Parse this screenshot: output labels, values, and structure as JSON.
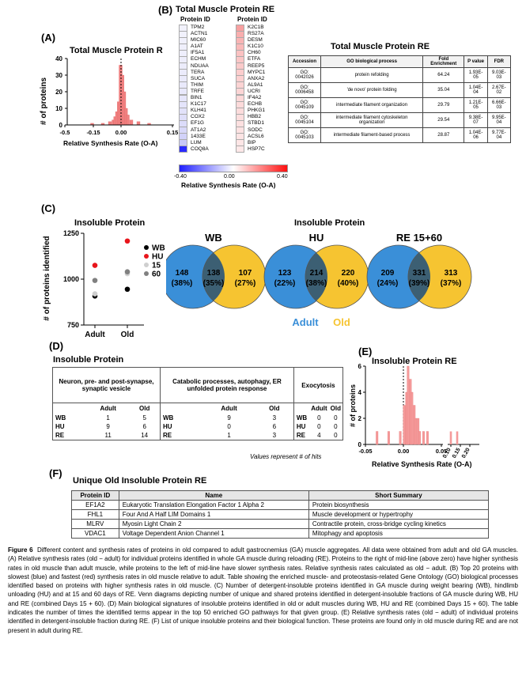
{
  "panel_a": {
    "label": "(A)",
    "title": "Total Muscle Protein R",
    "ylabel": "# of proteins",
    "xlabel": "Relative Synthesis Rate (O-A)",
    "yticks": [
      "40",
      "30",
      "20",
      "10",
      "0"
    ],
    "xticks": [
      "-0.5",
      "-0.15",
      "0.00",
      "0.15"
    ]
  },
  "panel_b": {
    "label": "(B)",
    "title": "Total Muscle Protein RE",
    "col1_header": "Protein ID",
    "col2_header": "Protein ID",
    "slow": [
      {
        "id": "TPM2",
        "color": "#f2f2fc"
      },
      {
        "id": "ACTN1",
        "color": "#f1f1fc"
      },
      {
        "id": "MIC60",
        "color": "#f0f0fc"
      },
      {
        "id": "A1AT",
        "color": "#efeffc"
      },
      {
        "id": "IF5A1",
        "color": "#eeeefc"
      },
      {
        "id": "ECHM",
        "color": "#ededfb"
      },
      {
        "id": "NDUAA",
        "color": "#ececfb"
      },
      {
        "id": "TERA",
        "color": "#ebebfb"
      },
      {
        "id": "SUCA",
        "color": "#eaeafb"
      },
      {
        "id": "THIM",
        "color": "#e9e9fb"
      },
      {
        "id": "TRFE",
        "color": "#e8e8fb"
      },
      {
        "id": "BIN1",
        "color": "#e6e6fb"
      },
      {
        "id": "K1C17",
        "color": "#e4e4fb"
      },
      {
        "id": "KLH41",
        "color": "#e2e2fa"
      },
      {
        "id": "COX2",
        "color": "#dfdffa"
      },
      {
        "id": "EF1G",
        "color": "#dcdcfa"
      },
      {
        "id": "AT1A2",
        "color": "#d8d8f9"
      },
      {
        "id": "1433E",
        "color": "#d2d2f9"
      },
      {
        "id": "LUM",
        "color": "#c8c8f8"
      },
      {
        "id": "COQ8A",
        "color": "#2a2aff"
      }
    ],
    "fast": [
      {
        "id": "K2C1B",
        "color": "#f8a0a0"
      },
      {
        "id": "RS27A",
        "color": "#f9aeae"
      },
      {
        "id": "DESM",
        "color": "#f9b4b4"
      },
      {
        "id": "K1C10",
        "color": "#fab9b9"
      },
      {
        "id": "CH60",
        "color": "#fbc2c2"
      },
      {
        "id": "ETFA",
        "color": "#fbc6c6"
      },
      {
        "id": "REEP5",
        "color": "#fbcaca"
      },
      {
        "id": "MYPC1",
        "color": "#fccdcd"
      },
      {
        "id": "ANXA2",
        "color": "#fcd0d0"
      },
      {
        "id": "AL9A1",
        "color": "#fcd3d3"
      },
      {
        "id": "UCRI",
        "color": "#fcd5d5"
      },
      {
        "id": "IF4A2",
        "color": "#fdd8d8"
      },
      {
        "id": "ECHB",
        "color": "#fddada"
      },
      {
        "id": "PHKG1",
        "color": "#fddcdc"
      },
      {
        "id": "HBB2",
        "color": "#fddede"
      },
      {
        "id": "STBD1",
        "color": "#fde0e0"
      },
      {
        "id": "SODC",
        "color": "#fde2e2"
      },
      {
        "id": "ACSL6",
        "color": "#fde4e4"
      },
      {
        "id": "BIP",
        "color": "#fee6e6"
      },
      {
        "id": "HSP7C",
        "color": "#fee8e8"
      }
    ],
    "scale_ticks": [
      "-0.40",
      "0.00",
      "0.40"
    ],
    "scale_label": "Relative Synthesis Rate (O-A)",
    "go_title": "Total Muscle Protein RE",
    "go_headers": [
      "Accession",
      "GO biological process",
      "Fold Enrichment",
      "P value",
      "FDR"
    ],
    "go_rows": [
      [
        "GO: 0042026",
        "protein refolding",
        "64.24",
        "1.93E-05",
        "9.03E-03"
      ],
      [
        "GO: 0006458",
        "'de novo' protein folding",
        "35.04",
        "1.04E-04",
        "2.67E-02"
      ],
      [
        "GO: 0045109",
        "intermediate filament organization",
        "29.79",
        "1.21E-05",
        "6.66E-03"
      ],
      [
        "GO: 0045104",
        "intermediate filament cytoskeleton organization",
        "29.54",
        "9.38E-07",
        "9.95E-04"
      ],
      [
        "GO: 0045103",
        "intermediate filament-based process",
        "28.87",
        "1.04E-06",
        "9.77E-04"
      ]
    ]
  },
  "panel_c": {
    "label": "(C)",
    "scatter_title": "Insoluble Protein",
    "ylabel": "# of proteins identified",
    "yticks": [
      "1250",
      "1000",
      "750"
    ],
    "xticks": [
      "Adult",
      "Old"
    ],
    "legend": [
      {
        "label": "WB",
        "color": "#000000"
      },
      {
        "label": "HU",
        "color": "#e8151b"
      },
      {
        "label": "15",
        "color": "#cfcfcf"
      },
      {
        "label": "60",
        "color": "#808080"
      }
    ],
    "venn_title": "Insoluble Protein",
    "venns": [
      {
        "title": "WB",
        "left": "148",
        "left_pct": "(38%)",
        "mid": "138",
        "mid_pct": "(35%)",
        "right": "107",
        "right_pct": "(27%)"
      },
      {
        "title": "HU",
        "left": "123",
        "left_pct": "(22%)",
        "mid": "214",
        "mid_pct": "(38%)",
        "right": "220",
        "right_pct": "(40%)"
      },
      {
        "title": "RE 15+60",
        "left": "209",
        "left_pct": "(24%)",
        "mid": "331",
        "mid_pct": "(39%)",
        "right": "313",
        "right_pct": "(37%)"
      }
    ],
    "venn_adult": "Adult",
    "venn_old": "Old",
    "colors": {
      "adult": "#3a8fd8",
      "old": "#f6c431",
      "overlap": "#3c5f73"
    }
  },
  "chart_data": [
    {
      "type": "scatter",
      "title": "Insoluble Protein",
      "ylabel": "# of proteins identified",
      "categories": [
        "Adult",
        "Old"
      ],
      "ylim": [
        750,
        1250
      ],
      "series": [
        {
          "name": "WB",
          "values": [
            908,
            945
          ]
        },
        {
          "name": "HU",
          "values": [
            1075,
            1208
          ]
        },
        {
          "name": "15",
          "values": [
            920,
            1030
          ]
        },
        {
          "name": "60",
          "values": [
            993,
            1040
          ]
        }
      ]
    },
    {
      "type": "bar",
      "title": "Total Muscle Protein R",
      "xlabel": "Relative Synthesis Rate (O-A)",
      "ylabel": "# of proteins",
      "xlim": [
        -0.15,
        0.15
      ],
      "ylim": [
        0,
        40
      ],
      "x": [
        -0.08,
        -0.05,
        -0.03,
        -0.02,
        -0.015,
        -0.01,
        -0.005,
        0.0,
        0.005,
        0.01,
        0.015,
        0.02,
        0.03,
        0.05,
        0.08
      ],
      "values": [
        1,
        1,
        2,
        3,
        5,
        8,
        14,
        36,
        30,
        20,
        10,
        6,
        3,
        2,
        1
      ]
    },
    {
      "type": "bar",
      "title": "Insoluble Protein RE",
      "xlabel": "Relative Synthesis Rate (O-A)",
      "ylabel": "# of proteins",
      "xlim": [
        -0.05,
        0.05
      ],
      "ylim": [
        0,
        6
      ],
      "x": [
        -0.035,
        -0.02,
        -0.005,
        0.0,
        0.003,
        0.005,
        0.008,
        0.01,
        0.013,
        0.015,
        0.018,
        0.02,
        0.025,
        0.03
      ],
      "values": [
        1,
        1,
        1,
        3,
        4,
        6,
        5,
        4,
        3,
        2,
        2,
        1,
        1,
        1
      ]
    }
  ],
  "panel_d": {
    "label": "(D)",
    "title": "Insoluble Protein",
    "groups": [
      {
        "header": "Neuron, pre- and post-synapse, synaptic vesicle",
        "rows": [
          [
            "WB",
            "1",
            "5"
          ],
          [
            "HU",
            "9",
            "6"
          ],
          [
            "RE",
            "11",
            "14"
          ]
        ]
      },
      {
        "header": "Catabolic processes, autophagy, ER unfolded protein response",
        "rows": [
          [
            "WB",
            "9",
            "3"
          ],
          [
            "HU",
            "0",
            "6"
          ],
          [
            "RE",
            "1",
            "3"
          ]
        ]
      },
      {
        "header": "Exocytosis",
        "rows": [
          [
            "WB",
            "0",
            "0"
          ],
          [
            "HU",
            "0",
            "0"
          ],
          [
            "RE",
            "4",
            "0"
          ]
        ]
      }
    ],
    "col_adult": "Adult",
    "col_old": "Old",
    "note": "Values represent # of hits"
  },
  "panel_e": {
    "label": "(E)",
    "title": "Insoluble Protein RE",
    "ylabel": "# of proteins",
    "xlabel": "Relative Synthesis Rate (O-A)",
    "yticks": [
      "6",
      "4",
      "2",
      "0"
    ],
    "xticks": [
      "-0.05",
      "0.00",
      "0.05",
      "0.10",
      "0.15",
      "0.20"
    ]
  },
  "panel_f": {
    "label": "(F)",
    "title": "Unique Old Insoluble Protein RE",
    "headers": [
      "Protein ID",
      "Name",
      "Short Summary"
    ],
    "rows": [
      [
        "EF1A2",
        "Eukaryotic Translation Elongation Factor 1 Alpha 2",
        "Protein biosynthesis"
      ],
      [
        "FHL1",
        "Four And A Half LIM Domains 1",
        "Muscle development or hypertrophy"
      ],
      [
        "MLRV",
        "Myosin Light Chain 2",
        "Contractile protein, cross-bridge cycling kinetics"
      ],
      [
        "VDAC1",
        "Voltage Dependent Anion Channel 1",
        "Mitophagy and apoptosis"
      ]
    ]
  },
  "caption": {
    "lead": "Figure 6",
    "text": "Different content and synthesis rates of proteins in old compared to adult gastrocnemius (GA) muscle aggregates. All data were obtained from adult and old GA muscles. (A) Relative synthesis rates (old − adult) for individual proteins identified in whole GA muscle during reloading (RE). Proteins to the right of mid-line (above zero) have higher synthesis rates in old muscle than adult muscle, while proteins to the left of mid-line have slower synthesis rates. Relative synthesis rates calculated as old − adult. (B) Top 20 proteins with slowest (blue) and fastest (red) synthesis rates in old muscle relative to adult. Table showing the enriched muscle- and proteostasis-related Gene Ontology (GO) biological processes identified based on proteins with higher synthesis rates in old muscle. (C) Number of detergent-insoluble proteins identified in GA muscle during weight bearing (WB), hindlimb unloading (HU) and at 15 and 60 days of RE. Venn diagrams depicting number of unique and shared proteins identified in detergent-insoluble fractions of GA muscle during WB, HU and RE (combined Days 15 + 60). (D) Main biological signatures of insoluble proteins identified in old or adult muscles during WB, HU and RE (combined Days 15 + 60). The table indicates the number of times the identified terms appear in the top 50 enriched GO pathways for that given group. (E) Relative synthesis rates (old − adult) of individual proteins identified in detergent-insoluble fraction during RE. (F) List of unique insoluble proteins and their biological function. These proteins are found only in old muscle during RE and are not present in adult during RE."
  }
}
